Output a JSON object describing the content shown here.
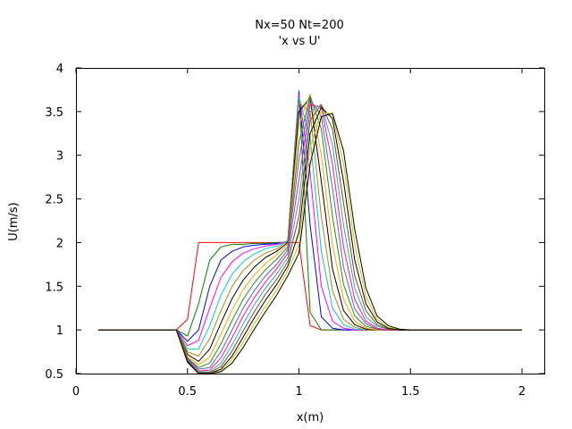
{
  "chart_data": {
    "type": "line",
    "title": "Nx=50 Nt=200",
    "subtitle": "'x vs U'",
    "xlabel": "x(m)",
    "ylabel": "U(m/s)",
    "xlim": [
      0,
      2.1
    ],
    "ylim": [
      0.5,
      4
    ],
    "xticks": [
      0,
      0.5,
      1,
      1.5,
      2
    ],
    "xtick_labels": [
      "0",
      "0.5",
      "1",
      "1.5",
      "2"
    ],
    "yticks": [
      0.5,
      1,
      1.5,
      2,
      2.5,
      3,
      3.5,
      4
    ],
    "ytick_labels": [
      "0.5",
      "1",
      "1.5",
      "2",
      "2.5",
      "3",
      "3.5",
      "4"
    ],
    "grid": false,
    "legend": "none",
    "colors": [
      "#ff0000",
      "#008000",
      "#0000ff",
      "#ff00ff",
      "#00cccc",
      "#b8860b",
      "#000000",
      "#ffa500",
      "#228b22",
      "#6a5acd",
      "#ff1493",
      "#20b2aa",
      "#8b4513",
      "#000000",
      "#c8c800",
      "#000000"
    ],
    "series": [
      {
        "x": [
          0.1,
          0.45,
          0.5,
          0.55,
          0.9,
          0.95,
          1.0,
          1.05,
          1.1,
          1.15,
          1.2,
          1.25,
          1.3,
          1.35,
          1.4,
          1.45,
          1.5,
          1.55,
          1.6,
          2.0
        ],
        "y": [
          1.0,
          1.0,
          1.12,
          2.0,
          2.0,
          2.0,
          2.0,
          1.05,
          1.0,
          1.0,
          1.0,
          1.0,
          1.0,
          1.0,
          1.0,
          1.0,
          1.0,
          1.0,
          1.0,
          1.0
        ]
      },
      {
        "x": [
          0.1,
          0.45,
          0.5,
          0.55,
          0.6,
          0.65,
          0.7,
          0.75,
          0.8,
          0.85,
          0.9,
          0.95,
          1.0,
          1.05,
          1.1,
          1.15,
          1.2,
          1.25,
          1.3,
          1.35,
          1.4,
          1.45,
          1.5,
          1.55,
          1.6,
          2.0
        ],
        "y": [
          1.0,
          1.0,
          0.93,
          1.3,
          1.8,
          1.95,
          1.98,
          1.98,
          1.99,
          1.99,
          2.0,
          2.0,
          3.74,
          1.2,
          1.0,
          1.0,
          1.0,
          1.0,
          1.0,
          1.0,
          1.0,
          1.0,
          1.0,
          1.0,
          1.0,
          1.0
        ]
      },
      {
        "x": [
          0.1,
          0.45,
          0.5,
          0.55,
          0.6,
          0.65,
          0.7,
          0.75,
          0.8,
          0.85,
          0.9,
          0.95,
          1.0,
          1.05,
          1.1,
          1.15,
          1.2,
          1.25,
          1.3,
          1.35,
          1.4,
          1.45,
          1.5,
          1.55,
          1.6,
          2.0
        ],
        "y": [
          1.0,
          1.0,
          0.87,
          1.0,
          1.5,
          1.8,
          1.9,
          1.95,
          1.97,
          1.98,
          1.99,
          2.01,
          3.72,
          2.2,
          1.15,
          1.02,
          1.0,
          1.0,
          1.0,
          1.0,
          1.0,
          1.0,
          1.0,
          1.0,
          1.0,
          1.0
        ]
      },
      {
        "x": [
          0.1,
          0.45,
          0.5,
          0.55,
          0.6,
          0.65,
          0.7,
          0.75,
          0.8,
          0.85,
          0.9,
          0.95,
          1.0,
          1.05,
          1.1,
          1.15,
          1.2,
          1.25,
          1.3,
          1.35,
          1.4,
          1.45,
          1.5,
          1.55,
          1.6,
          2.0
        ],
        "y": [
          1.0,
          1.0,
          0.82,
          0.88,
          1.25,
          1.6,
          1.78,
          1.88,
          1.93,
          1.96,
          1.98,
          2.02,
          3.7,
          2.8,
          1.5,
          1.1,
          1.02,
          1.0,
          1.0,
          1.0,
          1.0,
          1.0,
          1.0,
          1.0,
          1.0,
          1.0
        ]
      },
      {
        "x": [
          0.1,
          0.45,
          0.5,
          0.55,
          0.6,
          0.65,
          0.7,
          0.75,
          0.8,
          0.85,
          0.9,
          0.95,
          1.0,
          1.05,
          1.1,
          1.15,
          1.2,
          1.25,
          1.3,
          1.35,
          1.4,
          1.45,
          1.5,
          1.55,
          1.6,
          2.0
        ],
        "y": [
          1.0,
          1.0,
          0.78,
          0.78,
          1.05,
          1.4,
          1.64,
          1.78,
          1.87,
          1.93,
          1.96,
          2.02,
          3.66,
          3.2,
          1.9,
          1.25,
          1.06,
          1.01,
          1.0,
          1.0,
          1.0,
          1.0,
          1.0,
          1.0,
          1.0,
          1.0
        ]
      },
      {
        "x": [
          0.1,
          0.45,
          0.5,
          0.55,
          0.6,
          0.65,
          0.7,
          0.75,
          0.8,
          0.85,
          0.9,
          0.95,
          1.0,
          1.05,
          1.1,
          1.15,
          1.2,
          1.25,
          1.3,
          1.35,
          1.4,
          1.45,
          1.5,
          1.55,
          1.6,
          2.0
        ],
        "y": [
          1.0,
          1.0,
          0.75,
          0.7,
          0.9,
          1.22,
          1.5,
          1.68,
          1.8,
          1.88,
          1.93,
          2.02,
          3.6,
          3.5,
          2.3,
          1.45,
          1.12,
          1.03,
          1.0,
          1.0,
          1.0,
          1.0,
          1.0,
          1.0,
          1.0,
          1.0
        ]
      },
      {
        "x": [
          0.1,
          0.45,
          0.5,
          0.55,
          0.6,
          0.65,
          0.7,
          0.75,
          0.8,
          0.85,
          0.9,
          0.95,
          1.0,
          1.05,
          1.1,
          1.15,
          1.2,
          1.25,
          1.3,
          1.35,
          1.4,
          1.45,
          1.5,
          1.55,
          1.6,
          2.0
        ],
        "y": [
          1.0,
          1.0,
          0.72,
          0.64,
          0.78,
          1.08,
          1.36,
          1.57,
          1.72,
          1.83,
          1.9,
          2.0,
          3.5,
          3.66,
          2.7,
          1.7,
          1.22,
          1.06,
          1.01,
          1.0,
          1.0,
          1.0,
          1.0,
          1.0,
          1.0,
          1.0
        ]
      },
      {
        "x": [
          0.1,
          0.45,
          0.5,
          0.55,
          0.6,
          0.65,
          0.7,
          0.75,
          0.8,
          0.85,
          0.9,
          0.95,
          1.0,
          1.05,
          1.1,
          1.15,
          1.2,
          1.25,
          1.3,
          1.35,
          1.4,
          1.45,
          1.5,
          1.55,
          1.6,
          2.0
        ],
        "y": [
          1.0,
          1.0,
          0.7,
          0.6,
          0.69,
          0.95,
          1.23,
          1.46,
          1.63,
          1.76,
          1.86,
          1.98,
          3.35,
          3.7,
          3.0,
          1.98,
          1.35,
          1.1,
          1.02,
          1.0,
          1.0,
          1.0,
          1.0,
          1.0,
          1.0,
          1.0
        ]
      },
      {
        "x": [
          0.1,
          0.45,
          0.5,
          0.55,
          0.6,
          0.65,
          0.7,
          0.75,
          0.8,
          0.85,
          0.9,
          0.95,
          1.0,
          1.05,
          1.1,
          1.15,
          1.2,
          1.25,
          1.3,
          1.35,
          1.4,
          1.45,
          1.5,
          1.55,
          1.6,
          2.0
        ],
        "y": [
          1.0,
          1.0,
          0.68,
          0.57,
          0.62,
          0.84,
          1.11,
          1.35,
          1.54,
          1.69,
          1.81,
          1.95,
          3.15,
          3.68,
          3.3,
          2.3,
          1.52,
          1.16,
          1.04,
          1.01,
          1.0,
          1.0,
          1.0,
          1.0,
          1.0,
          1.0
        ]
      },
      {
        "x": [
          0.1,
          0.45,
          0.5,
          0.55,
          0.6,
          0.65,
          0.7,
          0.75,
          0.8,
          0.85,
          0.9,
          0.95,
          1.0,
          1.05,
          1.1,
          1.15,
          1.2,
          1.25,
          1.3,
          1.35,
          1.4,
          1.45,
          1.5,
          1.55,
          1.6,
          2.0
        ],
        "y": [
          1.0,
          1.0,
          0.67,
          0.55,
          0.57,
          0.75,
          1.0,
          1.25,
          1.45,
          1.62,
          1.75,
          1.92,
          2.95,
          3.64,
          3.45,
          2.62,
          1.72,
          1.24,
          1.07,
          1.01,
          1.0,
          1.0,
          1.0,
          1.0,
          1.0,
          1.0
        ]
      },
      {
        "x": [
          0.1,
          0.45,
          0.5,
          0.55,
          0.6,
          0.65,
          0.7,
          0.75,
          0.8,
          0.85,
          0.9,
          0.95,
          1.0,
          1.05,
          1.1,
          1.15,
          1.2,
          1.25,
          1.3,
          1.35,
          1.4,
          1.45,
          1.5,
          1.55,
          1.6,
          2.0
        ],
        "y": [
          1.0,
          1.0,
          0.66,
          0.53,
          0.54,
          0.68,
          0.91,
          1.16,
          1.37,
          1.55,
          1.7,
          1.88,
          2.72,
          3.58,
          3.55,
          2.9,
          1.95,
          1.35,
          1.1,
          1.02,
          1.0,
          1.0,
          1.0,
          1.0,
          1.0,
          1.0
        ]
      },
      {
        "x": [
          0.1,
          0.45,
          0.5,
          0.55,
          0.6,
          0.65,
          0.7,
          0.75,
          0.8,
          0.85,
          0.9,
          0.95,
          1.0,
          1.05,
          1.1,
          1.15,
          1.2,
          1.25,
          1.3,
          1.35,
          1.4,
          1.45,
          1.5,
          1.55,
          1.6,
          2.0
        ],
        "y": [
          1.0,
          1.0,
          0.65,
          0.52,
          0.52,
          0.62,
          0.83,
          1.07,
          1.29,
          1.48,
          1.64,
          1.83,
          2.5,
          3.5,
          3.58,
          3.12,
          2.2,
          1.48,
          1.15,
          1.04,
          1.01,
          1.0,
          1.0,
          1.0,
          1.0,
          1.0
        ]
      },
      {
        "x": [
          0.1,
          0.45,
          0.5,
          0.55,
          0.6,
          0.65,
          0.7,
          0.75,
          0.8,
          0.85,
          0.9,
          0.95,
          1.0,
          1.05,
          1.1,
          1.15,
          1.2,
          1.25,
          1.3,
          1.35,
          1.4,
          1.45,
          1.5,
          1.55,
          1.6,
          2.0
        ],
        "y": [
          1.0,
          1.0,
          0.64,
          0.51,
          0.51,
          0.58,
          0.76,
          0.99,
          1.21,
          1.41,
          1.58,
          1.78,
          2.3,
          3.4,
          3.58,
          3.3,
          2.45,
          1.62,
          1.22,
          1.06,
          1.01,
          1.0,
          1.0,
          1.0,
          1.0,
          1.0
        ]
      },
      {
        "x": [
          0.1,
          0.45,
          0.5,
          0.55,
          0.6,
          0.65,
          0.7,
          0.75,
          0.8,
          0.85,
          0.9,
          0.95,
          1.0,
          1.05,
          1.1,
          1.15,
          1.2,
          1.25,
          1.3,
          1.35,
          1.4,
          1.45,
          1.5,
          1.55,
          1.6,
          2.0
        ],
        "y": [
          1.0,
          1.0,
          0.64,
          0.5,
          0.5,
          0.55,
          0.7,
          0.92,
          1.14,
          1.34,
          1.52,
          1.73,
          2.12,
          3.25,
          3.55,
          3.42,
          2.7,
          1.8,
          1.3,
          1.09,
          1.02,
          1.0,
          1.0,
          1.0,
          1.0,
          1.0
        ]
      },
      {
        "x": [
          0.1,
          0.45,
          0.5,
          0.55,
          0.6,
          0.65,
          0.7,
          0.75,
          0.8,
          0.85,
          0.9,
          0.95,
          1.0,
          1.05,
          1.1,
          1.15,
          1.2,
          1.25,
          1.3,
          1.35,
          1.4,
          1.45,
          1.5,
          1.55,
          1.6,
          2.0
        ],
        "y": [
          1.0,
          1.0,
          0.63,
          0.5,
          0.5,
          0.53,
          0.66,
          0.86,
          1.07,
          1.27,
          1.46,
          1.68,
          1.98,
          3.08,
          3.5,
          3.47,
          2.9,
          1.98,
          1.38,
          1.12,
          1.03,
          1.01,
          1.0,
          1.0,
          1.0,
          1.0
        ]
      },
      {
        "x": [
          0.1,
          0.45,
          0.5,
          0.55,
          0.6,
          0.65,
          0.7,
          0.75,
          0.8,
          0.85,
          0.9,
          0.95,
          1.0,
          1.05,
          1.1,
          1.15,
          1.2,
          1.25,
          1.3,
          1.35,
          1.4,
          1.45,
          1.5,
          1.55,
          1.6,
          2.0
        ],
        "y": [
          1.0,
          1.0,
          0.63,
          0.5,
          0.5,
          0.52,
          0.62,
          0.8,
          1.01,
          1.21,
          1.4,
          1.62,
          1.88,
          2.9,
          3.44,
          3.48,
          3.05,
          2.15,
          1.48,
          1.16,
          1.05,
          1.01,
          1.0,
          1.0,
          1.0,
          1.0
        ]
      }
    ]
  }
}
